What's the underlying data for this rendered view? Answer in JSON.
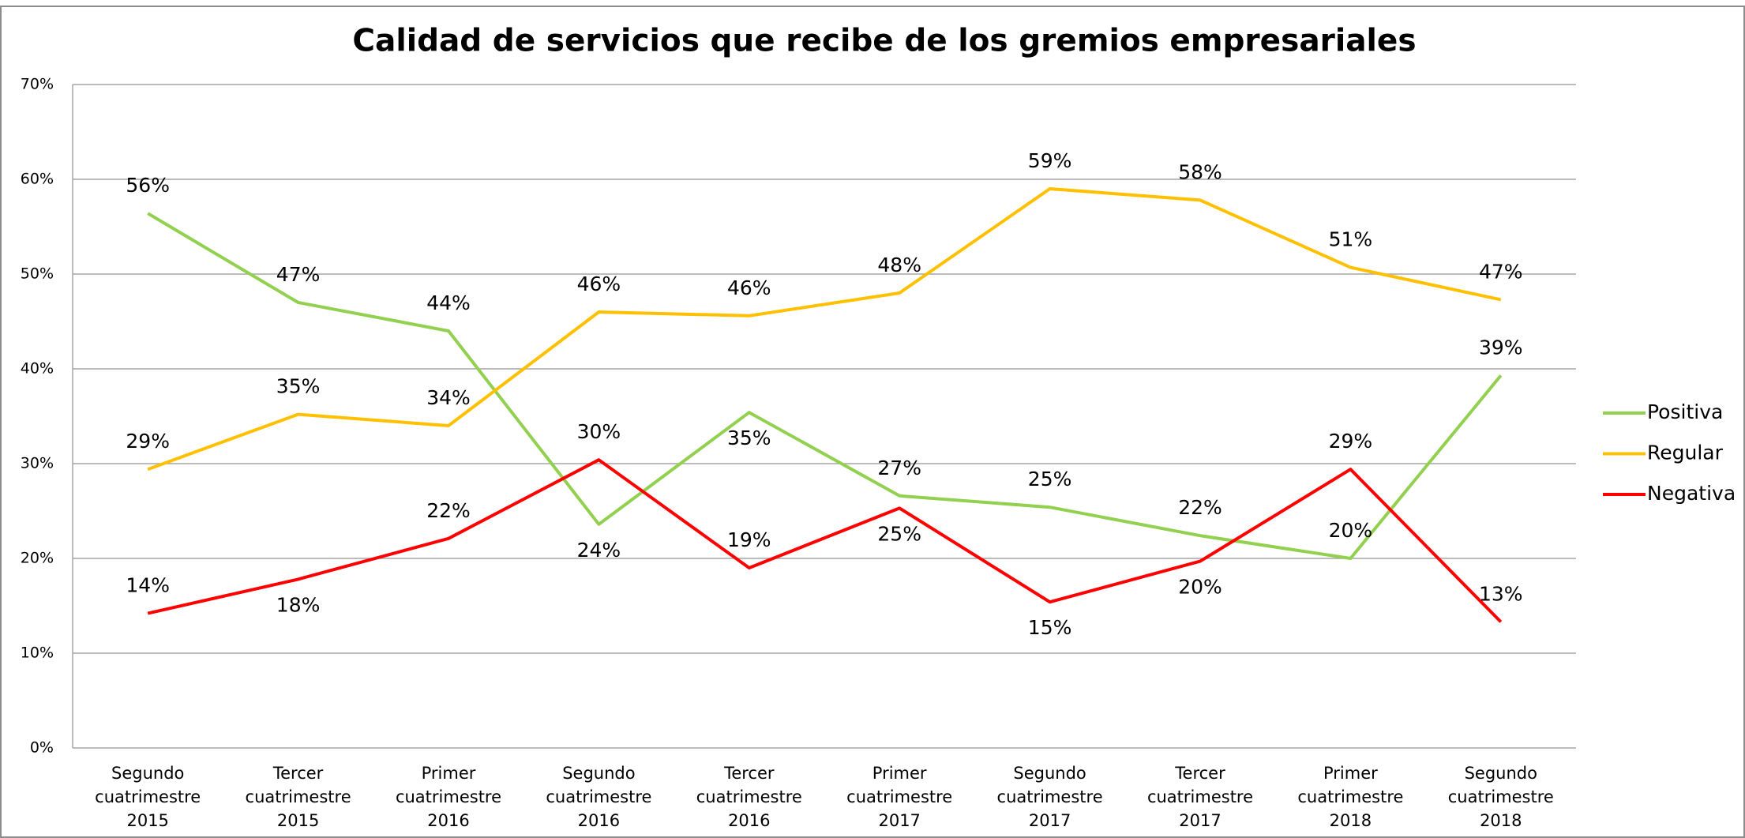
{
  "chart_data": {
    "type": "line",
    "title": "Calidad de servicios que recibe de los gremios empresariales",
    "categories": [
      "Segundo cuatrimestre 2015",
      "Tercer cuatrimestre 2015",
      "Primer cuatrimestre 2016",
      "Segundo cuatrimestre 2016",
      "Tercer cuatrimestre 2016",
      "Primer cuatrimestre 2017",
      "Segundo cuatrimestre 2017",
      "Tercer cuatrimestre 2017",
      "Primer cuatrimestre 2018",
      "Segundo cuatrimestre 2018"
    ],
    "series": [
      {
        "name": "Positiva",
        "color": "#92d050",
        "values": [
          56.4,
          47,
          44,
          23.6,
          35.4,
          26.6,
          25.4,
          22.4,
          20,
          39.3
        ],
        "value_labels": [
          "56%",
          "47%",
          "44%",
          "24%",
          "35%",
          "27%",
          "25%",
          "22%",
          "20%",
          "39%"
        ]
      },
      {
        "name": "Regular",
        "color": "#ffc000",
        "values": [
          29.4,
          35.2,
          34,
          46,
          45.6,
          48,
          59,
          57.8,
          50.7,
          47.3
        ],
        "value_labels": [
          "29%",
          "35%",
          "34%",
          "46%",
          "46%",
          "48%",
          "59%",
          "58%",
          "51%",
          "47%"
        ]
      },
      {
        "name": "Negativa",
        "color": "#ff0000",
        "values": [
          14.2,
          17.8,
          22.1,
          30.4,
          19,
          25.3,
          15.4,
          19.7,
          29.4,
          13.3
        ],
        "value_labels": [
          "14%",
          "18%",
          "22%",
          "30%",
          "19%",
          "25%",
          "15%",
          "20%",
          "29%",
          "13%"
        ]
      }
    ],
    "ylim": [
      0,
      70
    ],
    "yticks": [
      {
        "value": 0,
        "label": "0%"
      },
      {
        "value": 10,
        "label": "10%"
      },
      {
        "value": 20,
        "label": "20%"
      },
      {
        "value": 30,
        "label": "30%"
      },
      {
        "value": 40,
        "label": "40%"
      },
      {
        "value": 50,
        "label": "50%"
      },
      {
        "value": 60,
        "label": "60%"
      },
      {
        "value": 70,
        "label": "70%"
      }
    ],
    "grid": true,
    "legend": "right"
  }
}
